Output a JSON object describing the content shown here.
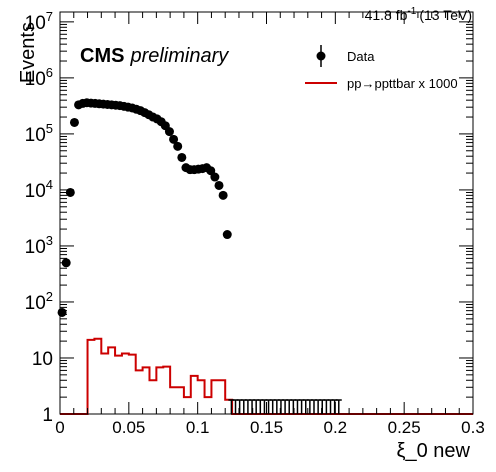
{
  "lumi_label": "41.8 fb",
  "lumi_exponent": "-1",
  "lumi_energy": "(13 TeV)",
  "cms_label": "CMS",
  "preliminary_label": "preliminary",
  "chart_data": {
    "type": "scatter",
    "xlabel": "ξ_0 new",
    "ylabel": "Events",
    "xlim": [
      0,
      0.3
    ],
    "ylim": [
      1,
      15000000
    ],
    "yscale": "log",
    "grid": false,
    "legend_position": "top-right",
    "x_ticks": [
      0,
      0.05,
      0.1,
      0.15,
      0.2,
      0.25,
      0.3
    ],
    "x_tick_labels": [
      "0",
      "0.05",
      "0.1",
      "0.15",
      "0.2",
      "0.25",
      "0.3"
    ],
    "y_ticks": [
      1,
      10,
      100,
      1000,
      10000,
      100000,
      1000000,
      10000000
    ],
    "y_tick_labels": [
      {
        "base": "1",
        "exp": ""
      },
      {
        "base": "10",
        "exp": ""
      },
      {
        "base": "10",
        "exp": "2"
      },
      {
        "base": "10",
        "exp": "3"
      },
      {
        "base": "10",
        "exp": "4"
      },
      {
        "base": "10",
        "exp": "5"
      },
      {
        "base": "10",
        "exp": "6"
      },
      {
        "base": "10",
        "exp": "7"
      }
    ],
    "series": [
      {
        "name": "Data",
        "style": "points",
        "color": "#000000",
        "x": [
          0.0015,
          0.0045,
          0.0075,
          0.0105,
          0.0135,
          0.0165,
          0.0195,
          0.0225,
          0.0255,
          0.0285,
          0.0315,
          0.0345,
          0.0375,
          0.0405,
          0.0435,
          0.0465,
          0.0495,
          0.0525,
          0.0555,
          0.0585,
          0.0615,
          0.0645,
          0.0675,
          0.0705,
          0.0735,
          0.0765,
          0.0795,
          0.0825,
          0.0855,
          0.0885,
          0.0915,
          0.0945,
          0.0975,
          0.1005,
          0.1035,
          0.1065,
          0.1095,
          0.1125,
          0.1155,
          0.1185,
          0.1215,
          0.1245,
          0.1275,
          0.1305,
          0.1335,
          0.1365,
          0.1395,
          0.1425,
          0.1455,
          0.1485,
          0.1515,
          0.1545,
          0.1575,
          0.1605,
          0.1635,
          0.1665,
          0.1695,
          0.1725,
          0.1755,
          0.1785,
          0.1815,
          0.1845,
          0.1875,
          0.1905,
          0.1935,
          0.1965,
          0.1995,
          0.2025
        ],
        "y": [
          65,
          500,
          9000,
          160000,
          330000,
          350000,
          360000,
          355000,
          350000,
          345000,
          340000,
          335000,
          330000,
          325000,
          320000,
          310000,
          300000,
          290000,
          275000,
          260000,
          240000,
          220000,
          200000,
          185000,
          165000,
          140000,
          110000,
          80000,
          60000,
          38000,
          25000,
          23000,
          23000,
          23500,
          24000,
          25000,
          22000,
          17000,
          12000,
          8000,
          1600,
          1,
          1,
          1,
          1,
          1,
          1,
          1,
          1,
          1,
          1,
          1,
          1,
          1,
          1,
          1,
          1,
          1,
          1,
          1,
          1,
          1,
          1,
          1,
          1,
          1,
          1,
          1
        ]
      },
      {
        "name": "pp→ppttbar x 1000",
        "style": "step",
        "color": "#cc0000",
        "bin_edges": [
          0,
          0.015,
          0.02,
          0.025,
          0.03,
          0.035,
          0.04,
          0.045,
          0.05,
          0.055,
          0.06,
          0.065,
          0.07,
          0.075,
          0.08,
          0.085,
          0.09,
          0.095,
          0.1,
          0.105,
          0.11,
          0.115,
          0.12,
          0.125,
          0.3
        ],
        "values": [
          1,
          1,
          21,
          22,
          12,
          15.5,
          11,
          12,
          11.5,
          6,
          6.8,
          4,
          6.8,
          7,
          3,
          3,
          2,
          4.8,
          4,
          2,
          4,
          4,
          1.8,
          1
        ]
      }
    ]
  }
}
